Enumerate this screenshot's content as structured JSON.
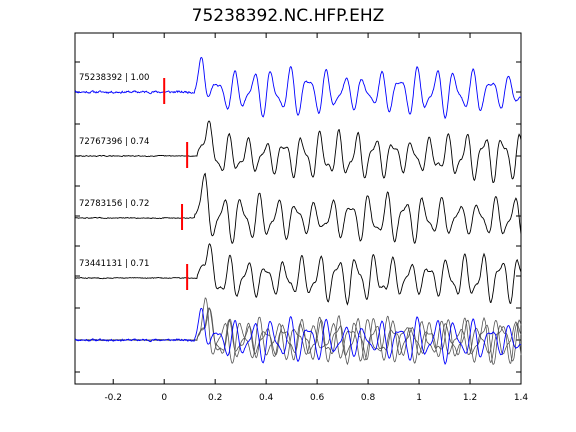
{
  "figure": {
    "title": "75238392.NC.HFP.EHZ"
  },
  "chart_data": {
    "type": "line",
    "title": "75238392.NC.HFP.EHZ",
    "xlabel": "",
    "ylabel": "",
    "xlim": [
      -0.35,
      1.4
    ],
    "xticks": [
      -0.2,
      0,
      0.2,
      0.4,
      0.6,
      0.8,
      1,
      1.2,
      1.4
    ],
    "xtick_labels": [
      "-0.2",
      "0",
      "0.2",
      "0.4",
      "0.6",
      "0.8",
      "1",
      "1.2",
      "1.4"
    ],
    "grid": false,
    "traces": [
      {
        "label": "75238392 | 1.00",
        "color": "#0000ff",
        "pick_time": 0.0,
        "onset": 0.12
      },
      {
        "label": "72767396 | 0.74",
        "color": "#000000",
        "pick_time": 0.09,
        "onset": 0.13
      },
      {
        "label": "72783156 | 0.72",
        "color": "#000000",
        "pick_time": 0.07,
        "onset": 0.12
      },
      {
        "label": "73441131 | 0.71",
        "color": "#000000",
        "pick_time": 0.09,
        "onset": 0.13
      }
    ],
    "stack": {
      "colors": [
        "#0000ff",
        "#555555"
      ]
    },
    "pick_color": "#ff0000"
  }
}
